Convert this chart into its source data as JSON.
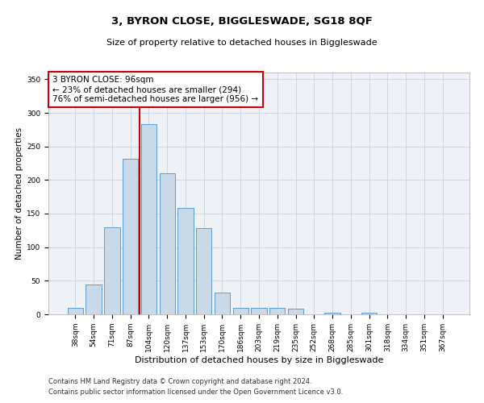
{
  "title1": "3, BYRON CLOSE, BIGGLESWADE, SG18 8QF",
  "title2": "Size of property relative to detached houses in Biggleswade",
  "xlabel": "Distribution of detached houses by size in Biggleswade",
  "ylabel": "Number of detached properties",
  "categories": [
    "38sqm",
    "54sqm",
    "71sqm",
    "87sqm",
    "104sqm",
    "120sqm",
    "137sqm",
    "153sqm",
    "170sqm",
    "186sqm",
    "203sqm",
    "219sqm",
    "235sqm",
    "252sqm",
    "268sqm",
    "285sqm",
    "301sqm",
    "318sqm",
    "334sqm",
    "351sqm",
    "367sqm"
  ],
  "values": [
    10,
    45,
    130,
    232,
    283,
    210,
    158,
    128,
    33,
    10,
    10,
    10,
    8,
    0,
    3,
    0,
    3,
    0,
    0,
    0,
    0
  ],
  "bar_color": "#c9d9e8",
  "bar_edge_color": "#5b9bd5",
  "vline_x": 3.5,
  "vline_color": "#cc0000",
  "ylim": [
    0,
    360
  ],
  "yticks": [
    0,
    50,
    100,
    150,
    200,
    250,
    300,
    350
  ],
  "annotation_text": "3 BYRON CLOSE: 96sqm\n← 23% of detached houses are smaller (294)\n76% of semi-detached houses are larger (956) →",
  "annotation_box_color": "#ffffff",
  "annotation_box_edge": "#cc0000",
  "footer1": "Contains HM Land Registry data © Crown copyright and database right 2024.",
  "footer2": "Contains public sector information licensed under the Open Government Licence v3.0.",
  "bg_color": "#eef2f7",
  "grid_color": "#c8d4e0",
  "title1_fontsize": 9.5,
  "title2_fontsize": 8,
  "ylabel_fontsize": 7.5,
  "xlabel_fontsize": 8,
  "tick_fontsize": 6.5,
  "annotation_fontsize": 7.5,
  "footer_fontsize": 6
}
